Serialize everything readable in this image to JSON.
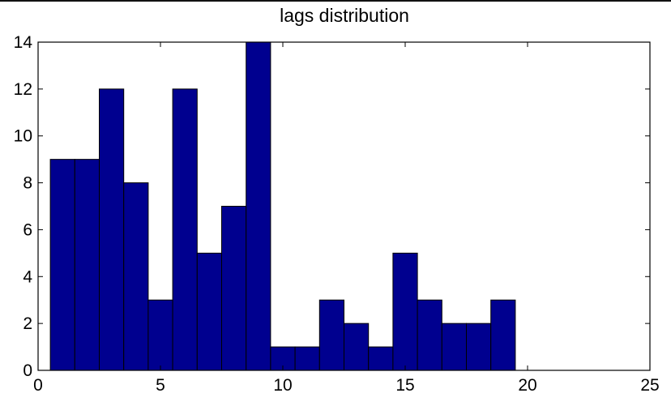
{
  "chart_data": {
    "type": "bar",
    "title": "lags distribution",
    "xlabel": "",
    "ylabel": "",
    "xlim": [
      0,
      25
    ],
    "ylim": [
      0,
      14
    ],
    "xticks": [
      0,
      5,
      10,
      15,
      20,
      25
    ],
    "yticks": [
      0,
      2,
      4,
      6,
      8,
      10,
      12,
      14
    ],
    "bin_centers": [
      1,
      2,
      3,
      4,
      5,
      6,
      7,
      8,
      9,
      10,
      11,
      12,
      13,
      14,
      15,
      16,
      17,
      18,
      19
    ],
    "bin_width": 1,
    "values": [
      9,
      9,
      12,
      8,
      3,
      12,
      5,
      7,
      14,
      1,
      1,
      3,
      2,
      1,
      5,
      3,
      2,
      2,
      3
    ],
    "grid": false,
    "colors": {
      "bar_fill": "#00008f",
      "bar_edge": "#000000",
      "axes": "#000000"
    }
  }
}
